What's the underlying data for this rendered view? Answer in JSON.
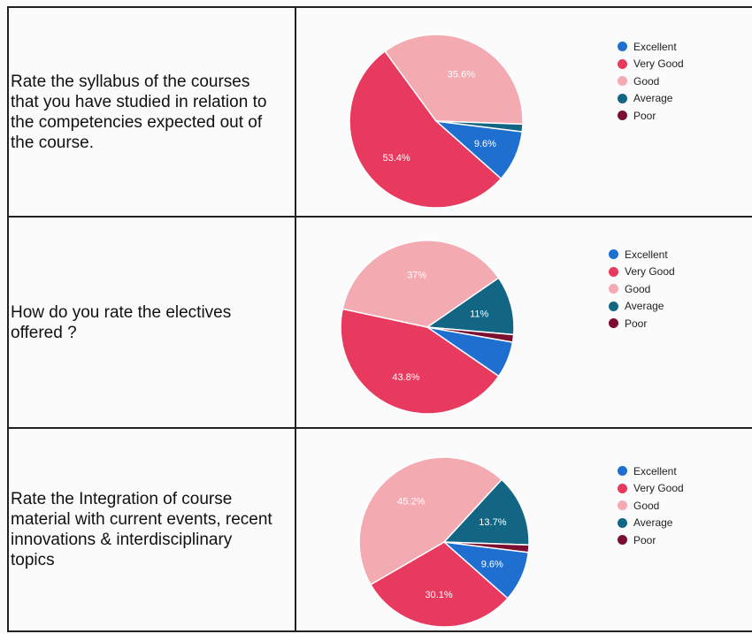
{
  "legend": [
    "Excellent",
    "Very Good",
    "Good",
    "Average",
    "Poor"
  ],
  "colors": {
    "Excellent": "#1f6fd0",
    "Very Good": "#e8395f",
    "Good": "#f4aab1",
    "Average": "#136683",
    "Poor": "#7c0f2f"
  },
  "rows": [
    {
      "question": "Rate the syllabus of the courses\nthat you have studied in relation to\nthe competencies expected out of\nthe course.",
      "chart_data": {
        "type": "pie",
        "categories": [
          "Excellent",
          "Very Good",
          "Good",
          "Average",
          "Poor"
        ],
        "values": [
          9.6,
          53.4,
          35.6,
          1.4,
          0
        ],
        "value_labels": [
          "9.6%",
          "53.4%",
          "35.6%",
          "",
          ""
        ],
        "legend_position": "right"
      }
    },
    {
      "question": "How do you rate the electives\noffered ?",
      "chart_data": {
        "type": "pie",
        "categories": [
          "Excellent",
          "Very Good",
          "Good",
          "Average",
          "Poor"
        ],
        "values": [
          6.8,
          43.8,
          37,
          11,
          1.4
        ],
        "value_labels": [
          "",
          "43.8%",
          "37%",
          "11%",
          ""
        ],
        "legend_position": "right"
      }
    },
    {
      "question": "Rate the Integration of course\nmaterial with current events, recent\ninnovations & interdisciplinary\ntopics",
      "chart_data": {
        "type": "pie",
        "categories": [
          "Excellent",
          "Very Good",
          "Good",
          "Average",
          "Poor"
        ],
        "values": [
          9.6,
          30.1,
          45.2,
          13.7,
          1.4
        ],
        "value_labels": [
          "9.6%",
          "30.1%",
          "45.2%",
          "13.7%",
          ""
        ],
        "legend_position": "right"
      }
    }
  ]
}
